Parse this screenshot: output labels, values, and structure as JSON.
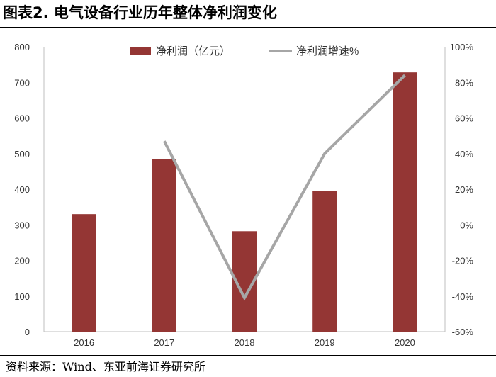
{
  "header": {
    "title": "图表2. 电气设备行业历年整体净利润变化"
  },
  "footer": {
    "source": "资料来源：Wind、东亚前海证券研究所"
  },
  "chart_data": {
    "type": "bar",
    "categories": [
      "2016",
      "2017",
      "2018",
      "2019",
      "2020"
    ],
    "series": [
      {
        "name": "净利润（亿元）",
        "type": "bar",
        "axis": "left",
        "values": [
          330,
          485,
          282,
          395,
          728
        ],
        "color": "#943634"
      },
      {
        "name": "净利润增速%",
        "type": "line",
        "axis": "right",
        "values": [
          null,
          47,
          -41,
          40,
          84
        ],
        "color": "#A6A6A6"
      }
    ],
    "y_left": {
      "min": 0,
      "max": 800,
      "step": 100,
      "ticks": [
        "0",
        "100",
        "200",
        "300",
        "400",
        "500",
        "600",
        "700",
        "800"
      ]
    },
    "y_right": {
      "min": -60,
      "max": 100,
      "step": 20,
      "ticks": [
        "-60%",
        "-40%",
        "-20%",
        "0%",
        "20%",
        "40%",
        "60%",
        "80%",
        "100%"
      ]
    },
    "grid": false,
    "legend_position": "top-center"
  }
}
